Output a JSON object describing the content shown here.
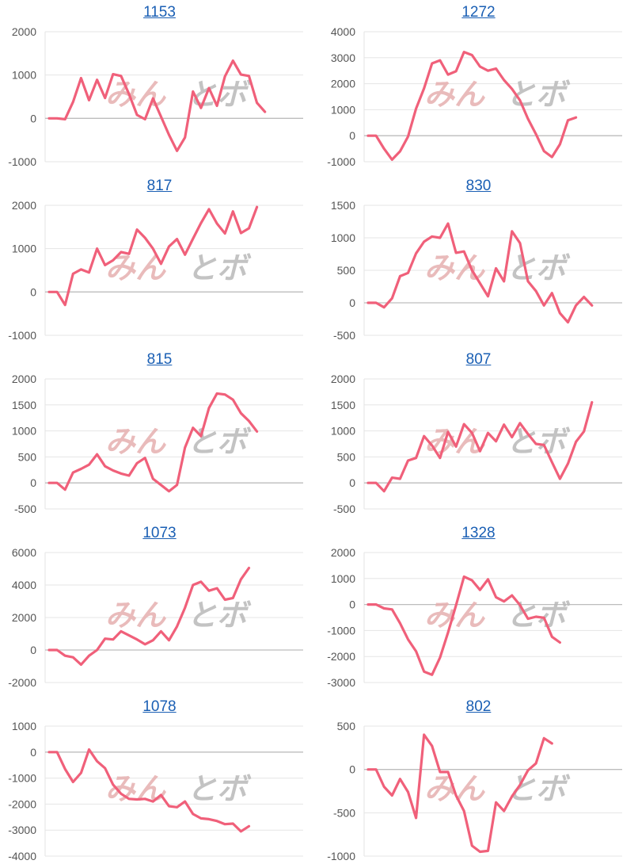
{
  "line_color": "#f0607a",
  "watermark": {
    "left": "みん",
    "right": "とボ"
  },
  "chart_data": [
    {
      "type": "line",
      "title": "1153",
      "yticks": [
        2000,
        1000,
        0,
        -1000
      ],
      "ylim": [
        -1000,
        2000
      ],
      "values": [
        0,
        0,
        -20,
        380,
        930,
        420,
        890,
        470,
        1020,
        980,
        560,
        80,
        -20,
        460,
        40,
        -380,
        -750,
        -440,
        620,
        240,
        700,
        290,
        970,
        1330,
        1010,
        980,
        360,
        150
      ]
    },
    {
      "type": "line",
      "title": "1272",
      "yticks": [
        4000,
        3000,
        2000,
        1000,
        0,
        -1000
      ],
      "ylim": [
        -1000,
        4000
      ],
      "values": [
        0,
        0,
        -500,
        -920,
        -600,
        -30,
        1040,
        1820,
        2780,
        2900,
        2350,
        2480,
        3220,
        3100,
        2660,
        2500,
        2580,
        2140,
        1800,
        1360,
        650,
        60,
        -590,
        -820,
        -330,
        590,
        700
      ]
    },
    {
      "type": "line",
      "title": "817",
      "yticks": [
        2000,
        1000,
        0,
        -1000
      ],
      "ylim": [
        -1000,
        2000
      ],
      "values": [
        0,
        0,
        -300,
        420,
        520,
        450,
        1000,
        620,
        730,
        920,
        880,
        1440,
        1250,
        1000,
        650,
        1050,
        1220,
        860,
        1230,
        1590,
        1910,
        1580,
        1350,
        1860,
        1360,
        1470,
        1960
      ]
    },
    {
      "type": "line",
      "title": "830",
      "yticks": [
        1500,
        1000,
        500,
        0,
        -500
      ],
      "ylim": [
        -500,
        1500
      ],
      "values": [
        0,
        0,
        -70,
        70,
        410,
        460,
        760,
        940,
        1020,
        1000,
        1220,
        770,
        790,
        500,
        300,
        100,
        530,
        330,
        1100,
        920,
        330,
        180,
        -40,
        150,
        -160,
        -300,
        -40,
        90,
        -40
      ]
    },
    {
      "type": "line",
      "title": "815",
      "yticks": [
        2000,
        1500,
        1000,
        500,
        0,
        -500
      ],
      "ylim": [
        -500,
        2000
      ],
      "values": [
        0,
        0,
        -130,
        200,
        270,
        350,
        550,
        320,
        240,
        180,
        140,
        380,
        480,
        80,
        -40,
        -160,
        -40,
        680,
        1060,
        900,
        1440,
        1720,
        1700,
        1600,
        1340,
        1190,
        990
      ]
    },
    {
      "type": "line",
      "title": "807",
      "yticks": [
        2000,
        1500,
        1000,
        500,
        0,
        -500
      ],
      "ylim": [
        -500,
        2000
      ],
      "values": [
        0,
        0,
        -160,
        100,
        80,
        430,
        480,
        900,
        720,
        480,
        980,
        700,
        1130,
        960,
        610,
        960,
        800,
        1120,
        880,
        1150,
        940,
        750,
        730,
        400,
        80,
        370,
        790,
        990,
        1550
      ]
    },
    {
      "type": "line",
      "title": "1073",
      "yticks": [
        6000,
        4000,
        2000,
        0,
        -2000
      ],
      "ylim": [
        -2000,
        6000
      ],
      "values": [
        0,
        0,
        -350,
        -450,
        -900,
        -350,
        0,
        700,
        650,
        1150,
        900,
        650,
        350,
        600,
        1150,
        600,
        1450,
        2600,
        4000,
        4200,
        3650,
        3800,
        3100,
        3200,
        4350,
        5050
      ]
    },
    {
      "type": "line",
      "title": "1328",
      "yticks": [
        2000,
        1000,
        0,
        -1000,
        -2000,
        -3000
      ],
      "ylim": [
        -3000,
        2000
      ],
      "values": [
        0,
        0,
        -150,
        -190,
        -720,
        -1340,
        -1800,
        -2580,
        -2700,
        -2040,
        -1080,
        -30,
        1070,
        930,
        560,
        970,
        280,
        120,
        350,
        -20,
        -550,
        -470,
        -510,
        -1240,
        -1460
      ]
    },
    {
      "type": "line",
      "title": "1078",
      "yticks": [
        1000,
        0,
        -1000,
        -2000,
        -3000,
        -4000
      ],
      "ylim": [
        -4000,
        1000
      ],
      "values": [
        0,
        0,
        -650,
        -1150,
        -800,
        100,
        -350,
        -620,
        -1250,
        -1600,
        -1800,
        -1820,
        -1800,
        -1900,
        -1650,
        -2080,
        -2120,
        -1900,
        -2380,
        -2550,
        -2580,
        -2650,
        -2770,
        -2750,
        -3050,
        -2850
      ]
    },
    {
      "type": "line",
      "title": "802",
      "yticks": [
        500,
        0,
        -500,
        -1000
      ],
      "ylim": [
        -1000,
        500
      ],
      "values": [
        0,
        0,
        -200,
        -300,
        -110,
        -260,
        -560,
        400,
        270,
        -30,
        -30,
        -300,
        -480,
        -880,
        -950,
        -940,
        -380,
        -480,
        -310,
        -180,
        -10,
        70,
        360,
        300
      ]
    }
  ]
}
